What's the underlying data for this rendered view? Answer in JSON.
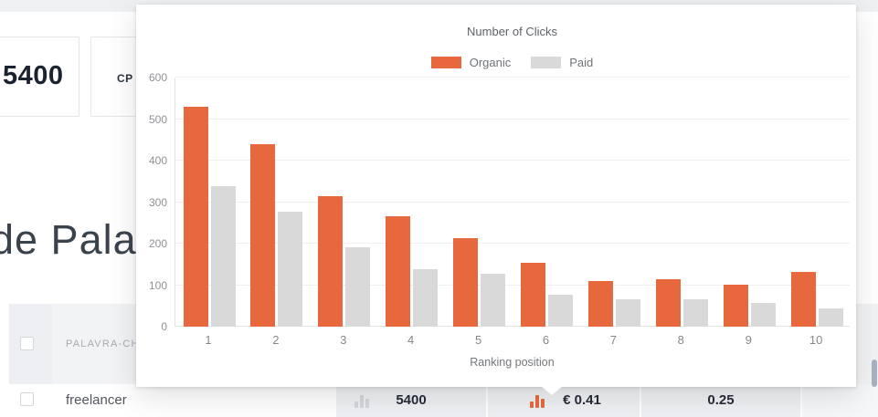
{
  "background": {
    "volume_card": {
      "value": "5400"
    },
    "cpc_card": {
      "label": "CP"
    },
    "heading": "de Palavra",
    "table": {
      "header_label": "PALAVRA-CH",
      "row": {
        "keyword": "freelancer",
        "volume": "5400",
        "cpc": "€ 0.41",
        "paid_difficulty": "0.25"
      }
    }
  },
  "chart_data": {
    "type": "bar",
    "title": "Number of Clicks",
    "xlabel": "Ranking position",
    "ylabel": "",
    "categories": [
      "1",
      "2",
      "3",
      "4",
      "5",
      "6",
      "7",
      "8",
      "9",
      "10"
    ],
    "series": [
      {
        "name": "Organic",
        "color": "#e7683c",
        "values": [
          530,
          440,
          315,
          265,
          213,
          153,
          111,
          115,
          102,
          133
        ]
      },
      {
        "name": "Paid",
        "color": "#d9d9d9",
        "values": [
          338,
          277,
          191,
          138,
          127,
          77,
          66,
          65,
          57,
          44
        ]
      }
    ],
    "ylim": [
      0,
      600
    ],
    "yticks": [
      0,
      100,
      200,
      300,
      400,
      500,
      600
    ],
    "grid": true,
    "legend_position": "top"
  },
  "colors": {
    "accent_orange": "#e7683c",
    "paid_gray": "#d9d9d9",
    "metric_cell_bg": "#eef0f3",
    "table_header_bg": "#f2f3f5"
  }
}
